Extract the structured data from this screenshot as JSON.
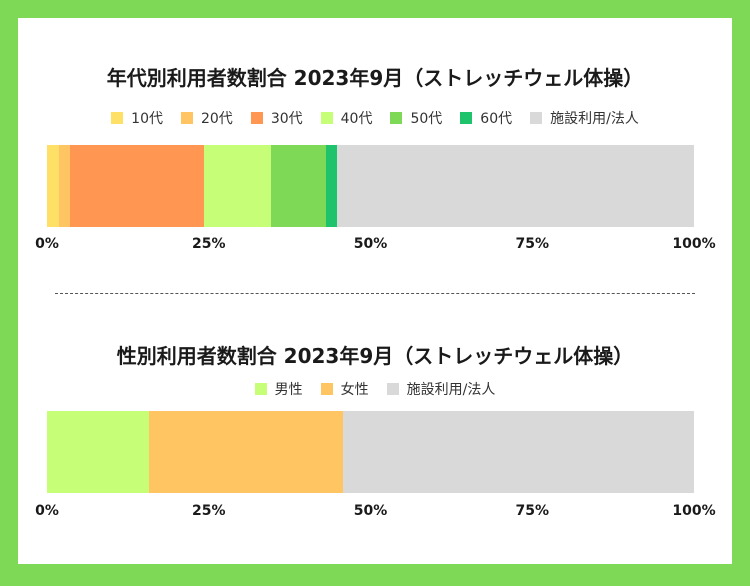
{
  "chart_data": [
    {
      "type": "bar",
      "stacked": true,
      "orientation": "horizontal",
      "title": "年代別利用者数割合 2023年9月（ストレッチウェル体操）",
      "legend": [
        "10代",
        "20代",
        "30代",
        "40代",
        "50代",
        "60代",
        "施設利用/法人"
      ],
      "series": [
        {
          "name": "10代",
          "values": [
            1.8
          ],
          "color": "#ffe066"
        },
        {
          "name": "20代",
          "values": [
            1.7
          ],
          "color": "#ffc562"
        },
        {
          "name": "30代",
          "values": [
            20.8
          ],
          "color": "#ff9652"
        },
        {
          "name": "40代",
          "values": [
            10.3
          ],
          "color": "#c6fe78"
        },
        {
          "name": "50代",
          "values": [
            8.6
          ],
          "color": "#7ed957"
        },
        {
          "name": "60代",
          "values": [
            1.7
          ],
          "color": "#1fc36b"
        },
        {
          "name": "施設利用/法人",
          "values": [
            55.1
          ],
          "color": "#d9d9d9"
        }
      ],
      "xlim": [
        0,
        100
      ],
      "xticks": [
        "0%",
        "25%",
        "50%",
        "75%",
        "100%"
      ]
    },
    {
      "type": "bar",
      "stacked": true,
      "orientation": "horizontal",
      "title": "性別利用者数割合 2023年9月（ストレッチウェル体操）",
      "legend": [
        "男性",
        "女性",
        "施設利用/法人"
      ],
      "series": [
        {
          "name": "男性",
          "values": [
            15.8
          ],
          "color": "#c6fe78"
        },
        {
          "name": "女性",
          "values": [
            29.9
          ],
          "color": "#ffc562"
        },
        {
          "name": "施設利用/法人",
          "values": [
            54.3
          ],
          "color": "#d9d9d9"
        }
      ],
      "xlim": [
        0,
        100
      ],
      "xticks": [
        "0%",
        "25%",
        "50%",
        "75%",
        "100%"
      ]
    }
  ]
}
